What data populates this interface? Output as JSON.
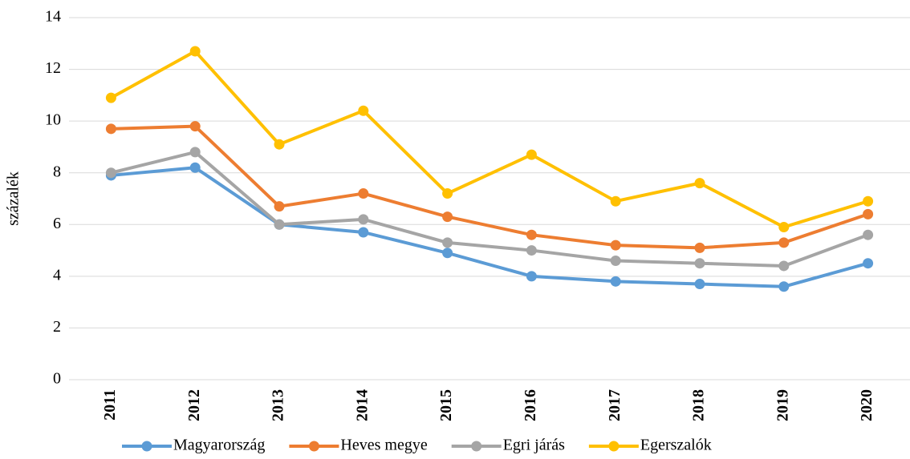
{
  "chart_data": {
    "type": "line",
    "y_label": "százalék",
    "categories": [
      "2011",
      "2012",
      "2013",
      "2014",
      "2015",
      "2016",
      "2017",
      "2018",
      "2019",
      "2020"
    ],
    "series": [
      {
        "name": "Magyarország",
        "color": "#5b9bd5",
        "values": [
          7.9,
          8.2,
          6.0,
          5.7,
          4.9,
          4.0,
          3.8,
          3.7,
          3.6,
          4.5
        ]
      },
      {
        "name": "Heves megye",
        "color": "#ed7d31",
        "values": [
          9.7,
          9.8,
          6.7,
          7.2,
          6.3,
          5.6,
          5.2,
          5.1,
          5.3,
          6.4
        ]
      },
      {
        "name": "Egri járás",
        "color": "#a5a5a5",
        "values": [
          8.0,
          8.8,
          6.0,
          6.2,
          5.3,
          5.0,
          4.6,
          4.5,
          4.4,
          5.6
        ]
      },
      {
        "name": "Egerszalók",
        "color": "#ffc000",
        "values": [
          10.9,
          12.7,
          9.1,
          10.4,
          7.2,
          8.7,
          6.9,
          7.6,
          5.9,
          6.9
        ]
      }
    ],
    "ylim": [
      0,
      14
    ],
    "yticks": [
      0,
      2,
      4,
      6,
      8,
      10,
      12,
      14
    ],
    "grid": true
  }
}
